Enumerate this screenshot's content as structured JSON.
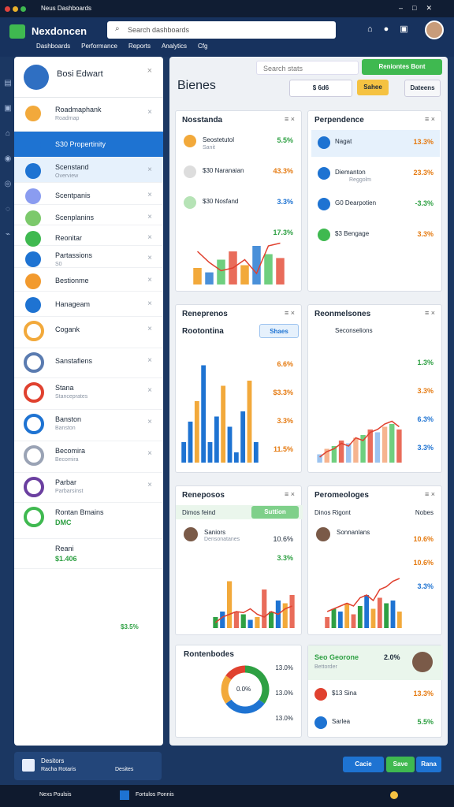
{
  "window": {
    "title": "Neus Dashboards"
  },
  "header": {
    "brand": "Nexdoncen",
    "search": "Search dashboards"
  },
  "nav": [
    "Dashboards",
    "Performance",
    "Reports",
    "Analytics",
    "Cfg"
  ],
  "sidebar": {
    "user": "Bosi Edwart",
    "items": [
      {
        "title": "Roadmaphank",
        "subtitle": "Roadmap"
      },
      {
        "title": "S30 Propertinity",
        "subtitle": ""
      },
      {
        "title": "Scenstand",
        "subtitle": "Overview"
      },
      {
        "title": "Scentpanis",
        "subtitle": ""
      },
      {
        "title": "Scenplanins",
        "subtitle": ""
      },
      {
        "title": "Reonitar",
        "subtitle": ""
      },
      {
        "title": "Partassions",
        "subtitle": "S0"
      },
      {
        "title": "Bestionme",
        "subtitle": ""
      },
      {
        "title": "Hanageam",
        "subtitle": ""
      },
      {
        "title": "Cogank",
        "subtitle": ""
      },
      {
        "title": "Sanstafiens",
        "subtitle": ""
      },
      {
        "title": "Stana",
        "subtitle": "Stanceprates"
      },
      {
        "title": "Banston",
        "subtitle": "Banston"
      },
      {
        "title": "Becomira",
        "subtitle": "Becomira"
      },
      {
        "title": "Parbar",
        "subtitle": "Parbarsinst"
      },
      {
        "title": "Rontan Bmains",
        "subtitle": "DMC"
      },
      {
        "title": "Reani",
        "subtitle": "$1.406"
      }
    ],
    "total": "$3.5%",
    "footer": {
      "title": "Desitors",
      "subtitle": "Racha Rotaris",
      "action": "Desites"
    }
  },
  "main": {
    "title": "Bienes",
    "search": "Search stats",
    "add": "Reniontes Bont",
    "filter": "$ 6d6",
    "save": "Sahee",
    "export": "Dateens",
    "w1": {
      "title": "Nosstanda",
      "rows": [
        [
          "Seostetutol",
          "Sanit",
          "5.5%"
        ],
        [
          "$30 Naranaian",
          "",
          "43.3%"
        ],
        [
          "$30 Nosfand",
          "",
          "3.3%"
        ],
        [
          "",
          "",
          "17.3%"
        ]
      ],
      "chart": {
        "ylim": [
          0,
          100
        ],
        "bars": [
          30,
          22,
          45,
          60,
          35,
          70,
          55,
          48
        ],
        "line": [
          60,
          40,
          25,
          30,
          45,
          20,
          70,
          75
        ],
        "colors": [
          "#f2a93b",
          "#4a90d9",
          "#6fcf7f",
          "#e96c5a"
        ]
      }
    },
    "w2": {
      "title": "Perpendence",
      "rows": [
        [
          "Nagat",
          "",
          "13.3%"
        ],
        [
          "Diemanton",
          "Reggolm",
          "23.3%"
        ],
        [
          "G0 Dearpotien",
          "",
          "-3.3%"
        ],
        [
          "$3 Bengage",
          "",
          "3.3%"
        ]
      ]
    },
    "w3": {
      "header": "Reneprenos",
      "title": "Rootontina",
      "button": "Shaes",
      "labels": [
        "6.6%",
        "$3.3%",
        "3.3%",
        "11.5%"
      ],
      "chart": {
        "ylim": [
          0,
          100
        ],
        "bars": [
          20,
          40,
          60,
          95,
          20,
          45,
          75,
          35,
          10,
          50,
          80,
          20
        ],
        "colors": [
          "#1e73d2",
          "#1e73d2",
          "#f2a93b",
          "#1e73d2"
        ]
      }
    },
    "w4": {
      "header": "Reonmelsones",
      "title": "Seconselions",
      "labels": [
        "1.3%",
        "3.3%",
        "6.3%",
        "3.3%"
      ],
      "chart": {
        "ylim": [
          0,
          100
        ],
        "bars": [
          15,
          25,
          30,
          40,
          35,
          45,
          50,
          60,
          55,
          65,
          70,
          60
        ],
        "line": [
          10,
          20,
          25,
          35,
          30,
          45,
          40,
          55,
          60,
          70,
          75,
          65
        ],
        "colors": [
          "#9cc3ef",
          "#f6b48f",
          "#6fcf7f",
          "#e96c5a"
        ]
      }
    },
    "w5": {
      "header": "Reneposos",
      "title": "Dimos feind",
      "button": "Suttion",
      "person": "Saniors",
      "role": "Densonatanes",
      "labels": [
        "10.6%",
        "3.3%"
      ],
      "chart": {
        "ylim": [
          0,
          100
        ],
        "bars": [
          20,
          30,
          85,
          30,
          25,
          15,
          20,
          70,
          30,
          50,
          45,
          60
        ],
        "line": [
          10,
          20,
          25,
          30,
          28,
          35,
          25,
          20,
          30,
          25,
          35,
          40
        ],
        "colors": [
          "#2ea043",
          "#1e73d2",
          "#f2a93b",
          "#e96c5a"
        ]
      }
    },
    "w6": {
      "header": "Peromeologes",
      "title": "Dinos Rigont",
      "button": "Nobes",
      "person": "Sonnanlans",
      "labels": [
        "10.6%",
        "10.6%",
        "3.3%"
      ],
      "chart": {
        "ylim": [
          0,
          100
        ],
        "bars": [
          20,
          35,
          30,
          45,
          25,
          40,
          60,
          35,
          55,
          45,
          50,
          30
        ],
        "line": [
          30,
          35,
          40,
          45,
          40,
          55,
          60,
          50,
          70,
          75,
          85,
          90
        ],
        "colors": [
          "#e96c5a",
          "#2ea043",
          "#1e73d2",
          "#f2a93b"
        ]
      }
    },
    "w7": {
      "title": "Rontenbodes",
      "center": "0.0%",
      "labels": [
        "13.0%",
        "13.0%",
        "13.0%"
      ],
      "donut": {
        "values": [
          35,
          30,
          20,
          15
        ],
        "colors": [
          "#2ea043",
          "#1e73d2",
          "#f2a93b",
          "#e0412f"
        ]
      }
    },
    "w8": {
      "title": "Seo Georone",
      "value": "2.0%",
      "subtitle": "Bettorder",
      "rows": [
        [
          "$13 Sina",
          "13.3%"
        ],
        [
          "Sarlea",
          "5.5%"
        ]
      ]
    },
    "actions": [
      "Cacie",
      "Save",
      "Rana"
    ]
  },
  "taskbar": {
    "app": "Nexs Poulsis",
    "doc": "Fortulos Ponnis"
  }
}
